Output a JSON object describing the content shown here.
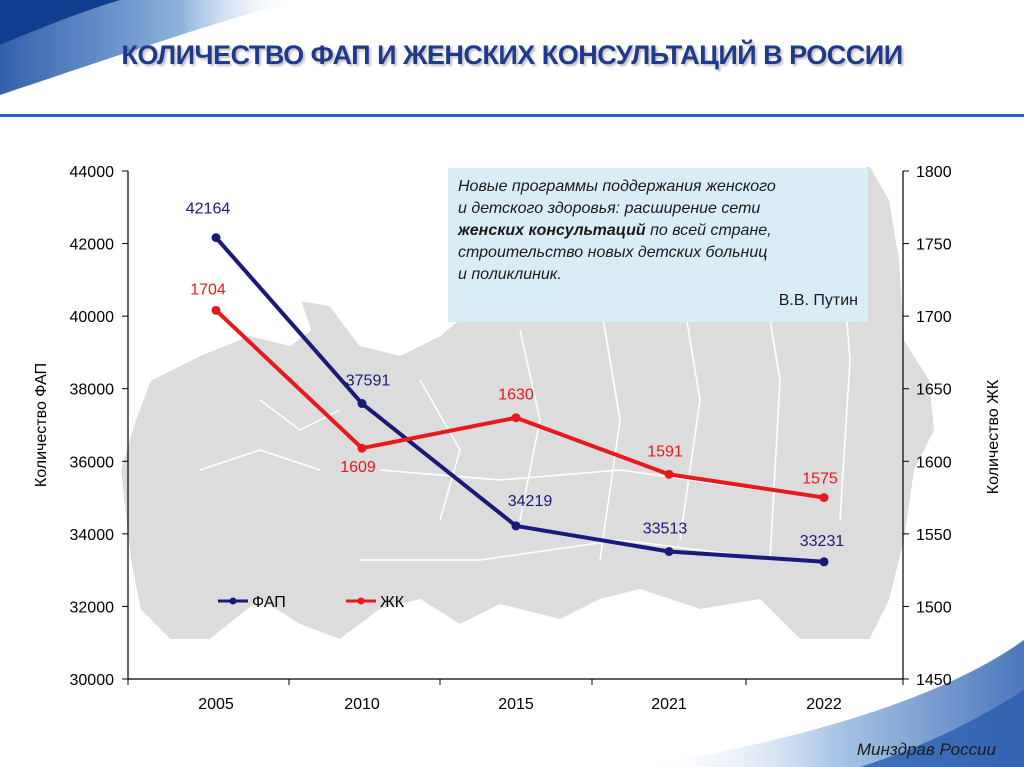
{
  "slide": {
    "title": "КОЛИЧЕСТВО ФАП И ЖЕНСКИХ КОНСУЛЬТАЦИЙ В РОССИИ",
    "footer": "Минздрав России",
    "accent_color": "#1f3a8a"
  },
  "quote": {
    "line1": "Новые программы поддержания женского",
    "line2": "и детского здоровья: расширение сети",
    "bold": "женских консультаций",
    "line3_rest": " по всей стране,",
    "line4": "строительство новых детских больниц",
    "line5": "и поликлиник.",
    "author": "В.В. Путин",
    "background": "#d9edf7"
  },
  "chart_data": {
    "type": "line",
    "categories": [
      "2005",
      "2010",
      "2015",
      "2021",
      "2022"
    ],
    "series": [
      {
        "name": "ФАП",
        "axis": "left",
        "color": "#1a1a7a",
        "values": [
          42164,
          37591,
          34219,
          33513,
          33231
        ]
      },
      {
        "name": "ЖК",
        "axis": "right",
        "color": "#e8191c",
        "values": [
          1704,
          1609,
          1630,
          1591,
          1575
        ]
      }
    ],
    "ylabel": "Количество ФАП",
    "ylabel_right": "Количество ЖК",
    "ylim": [
      30000,
      44000
    ],
    "ylim_right": [
      1450,
      1800
    ],
    "yticks": [
      "30000",
      "32000",
      "34000",
      "36000",
      "38000",
      "40000",
      "42000",
      "44000"
    ],
    "yticks_right": [
      "1450",
      "1500",
      "1550",
      "1600",
      "1650",
      "1700",
      "1750",
      "1800"
    ],
    "legend_position": "bottom-left",
    "grid": false
  }
}
